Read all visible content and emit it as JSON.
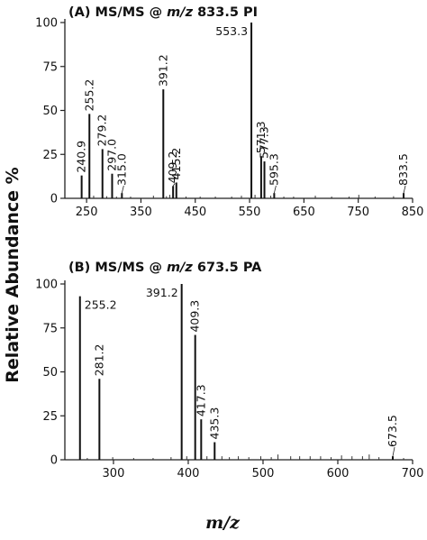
{
  "figure": {
    "ylabel": "Relative Abundance %",
    "xlabel": "m/z"
  },
  "chart_data": [
    {
      "type": "bar",
      "panel_label": "(A)",
      "title_prefix": "MS/MS @ ",
      "title_mz": "m/z",
      "title_suffix": " 833.5 PI",
      "xlim": [
        210,
        850
      ],
      "ylim": [
        0,
        100
      ],
      "xticks": [
        250,
        350,
        450,
        550,
        650,
        750,
        850
      ],
      "yticks": [
        0,
        25,
        50,
        75,
        100
      ],
      "peaks": [
        {
          "x": 240.9,
          "y": 13,
          "label": "240.9"
        },
        {
          "x": 255.2,
          "y": 48,
          "label": "255.2"
        },
        {
          "x": 279.2,
          "y": 28,
          "label": "279.2"
        },
        {
          "x": 297.0,
          "y": 14,
          "label": "297.0"
        },
        {
          "x": 315.0,
          "y": 3,
          "label": "315.0"
        },
        {
          "x": 391.2,
          "y": 62,
          "label": "391.2"
        },
        {
          "x": 409.2,
          "y": 7,
          "label": "409.2"
        },
        {
          "x": 415.2,
          "y": 9,
          "label": "415.2"
        },
        {
          "x": 553.3,
          "y": 100,
          "label": "553.3"
        },
        {
          "x": 571.3,
          "y": 24,
          "label": "571.3"
        },
        {
          "x": 577.3,
          "y": 21,
          "label": "577.3"
        },
        {
          "x": 595.3,
          "y": 3,
          "label": "595.3"
        },
        {
          "x": 833.5,
          "y": 3,
          "label": "833.5"
        }
      ],
      "minor_peaks": [
        {
          "x": 263,
          "y": 1.5
        },
        {
          "x": 287,
          "y": 1.2
        },
        {
          "x": 305,
          "y": 1
        },
        {
          "x": 331,
          "y": 1
        },
        {
          "x": 373,
          "y": 1.5
        },
        {
          "x": 397,
          "y": 1.2
        },
        {
          "x": 403,
          "y": 2
        },
        {
          "x": 433,
          "y": 1
        },
        {
          "x": 459,
          "y": 1
        },
        {
          "x": 487,
          "y": 1
        },
        {
          "x": 517,
          "y": 1
        },
        {
          "x": 535,
          "y": 1.5
        },
        {
          "x": 560,
          "y": 2
        },
        {
          "x": 589,
          "y": 1.5
        },
        {
          "x": 613,
          "y": 1
        },
        {
          "x": 631,
          "y": 1
        },
        {
          "x": 671,
          "y": 1.5
        },
        {
          "x": 701,
          "y": 1
        },
        {
          "x": 733,
          "y": 1
        },
        {
          "x": 751,
          "y": 2
        },
        {
          "x": 781,
          "y": 1
        },
        {
          "x": 815,
          "y": 1.2
        }
      ]
    },
    {
      "type": "bar",
      "panel_label": "(B)",
      "title_prefix": "MS/MS @ ",
      "title_mz": "m/z",
      "title_suffix": " 673.5 PA",
      "xlim": [
        235,
        700
      ],
      "ylim": [
        0,
        100
      ],
      "xticks": [
        300,
        400,
        500,
        600,
        700
      ],
      "yticks": [
        0,
        25,
        50,
        75,
        100
      ],
      "peaks": [
        {
          "x": 255.2,
          "y": 93,
          "label": "255.2"
        },
        {
          "x": 281.2,
          "y": 46,
          "label": "281.2"
        },
        {
          "x": 391.2,
          "y": 100,
          "label": "391.2"
        },
        {
          "x": 409.3,
          "y": 71,
          "label": "409.3"
        },
        {
          "x": 417.3,
          "y": 23,
          "label": "417.3"
        },
        {
          "x": 435.3,
          "y": 10,
          "label": "435.3"
        },
        {
          "x": 673.5,
          "y": 2,
          "label": "673.5"
        }
      ],
      "minor_peaks": [
        {
          "x": 265,
          "y": 1
        },
        {
          "x": 299,
          "y": 1.5
        },
        {
          "x": 327,
          "y": 1
        },
        {
          "x": 353,
          "y": 1
        },
        {
          "x": 377,
          "y": 1.5
        },
        {
          "x": 398,
          "y": 2
        },
        {
          "x": 425,
          "y": 2
        },
        {
          "x": 445,
          "y": 2
        },
        {
          "x": 455,
          "y": 1.5
        },
        {
          "x": 467,
          "y": 2
        },
        {
          "x": 481,
          "y": 1.5
        },
        {
          "x": 497,
          "y": 2
        },
        {
          "x": 511,
          "y": 1.5
        },
        {
          "x": 520,
          "y": 3
        },
        {
          "x": 537,
          "y": 2
        },
        {
          "x": 549,
          "y": 2
        },
        {
          "x": 563,
          "y": 2
        },
        {
          "x": 577,
          "y": 2
        },
        {
          "x": 591,
          "y": 1.5
        },
        {
          "x": 605,
          "y": 2.5
        },
        {
          "x": 619,
          "y": 2
        },
        {
          "x": 633,
          "y": 2
        },
        {
          "x": 642,
          "y": 3
        },
        {
          "x": 655,
          "y": 1.5
        },
        {
          "x": 688,
          "y": 1
        }
      ]
    }
  ]
}
